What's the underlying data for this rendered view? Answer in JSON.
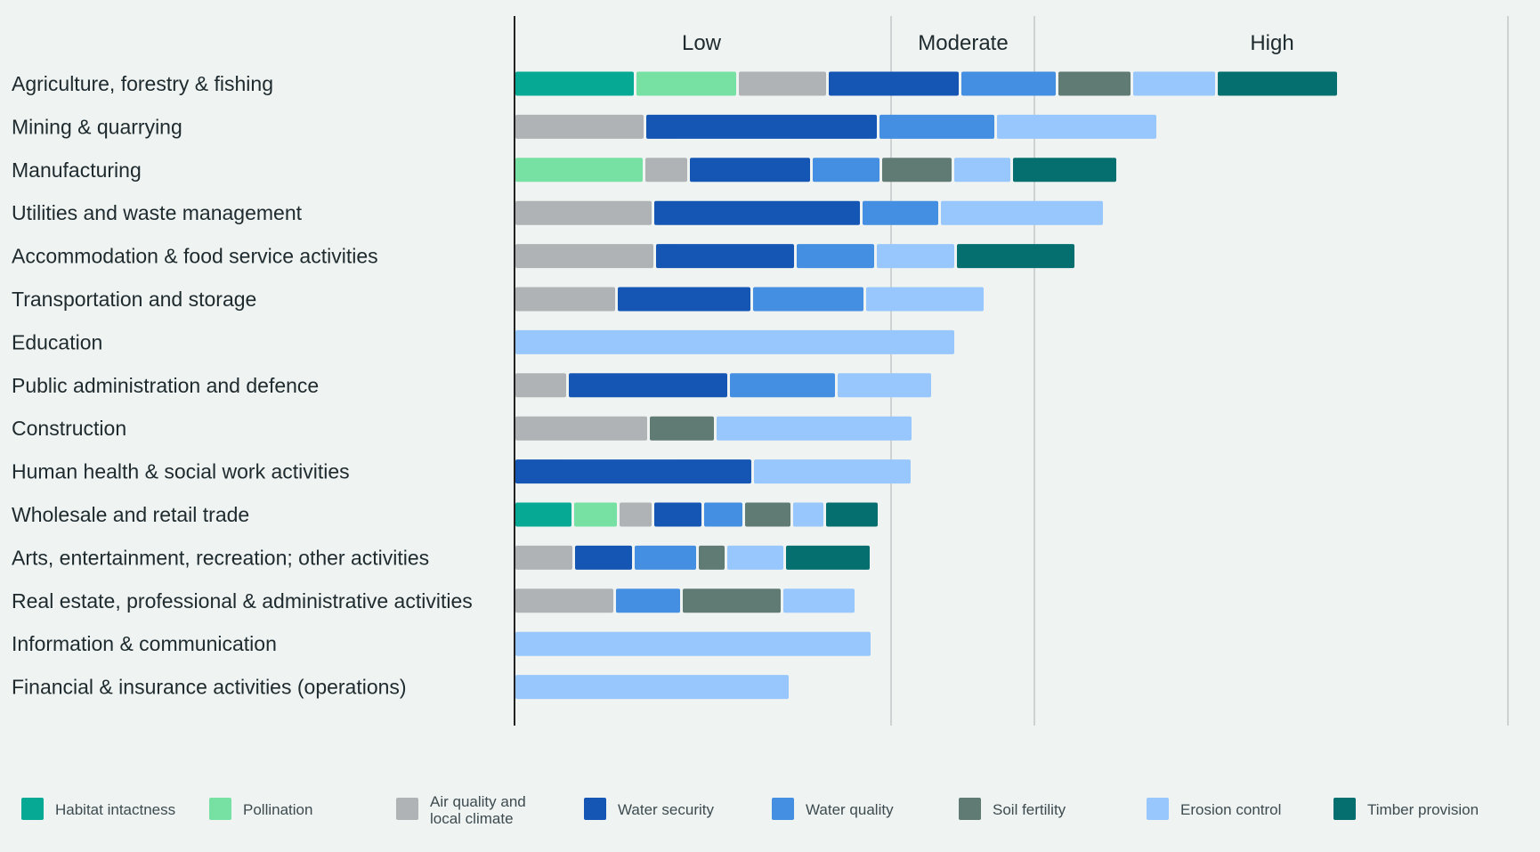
{
  "chart_data": {
    "type": "bar",
    "stacked": true,
    "orientation": "horizontal",
    "bands": [
      "Low",
      "Moderate",
      "High"
    ],
    "categories": [
      "Agriculture, forestry & fishing",
      "Mining & quarrying",
      "Manufacturing",
      "Utilities and waste management",
      "Accommodation & food service activities",
      "Transportation and storage",
      "Education",
      "Public administration and defence",
      "Construction",
      "Human health & social work activities",
      "Wholesale and retail trade",
      "Arts, entertainment, recreation; other activities",
      "Real estate, professional & administrative activities",
      "Information & communication",
      "Financial & insurance activities (operations)"
    ],
    "series": [
      {
        "name": "Habitat intactness",
        "color": "#06a994",
        "values": [
          133,
          0,
          0,
          0,
          0,
          0,
          0,
          0,
          0,
          0,
          63,
          0,
          0,
          0,
          0
        ]
      },
      {
        "name": "Pollination",
        "color": "#77e0a3",
        "values": [
          112,
          0,
          143,
          0,
          0,
          0,
          0,
          0,
          0,
          0,
          48,
          0,
          0,
          0,
          0
        ]
      },
      {
        "name": "Air quality and local climate",
        "color": "#b0b3b5",
        "values": [
          98,
          144,
          47,
          153,
          155,
          112,
          0,
          57,
          148,
          0,
          36,
          64,
          110,
          0,
          0
        ]
      },
      {
        "name": "Water security",
        "color": "#1556b5",
        "values": [
          146,
          259,
          135,
          231,
          155,
          149,
          0,
          178,
          0,
          265,
          53,
          64,
          0,
          0,
          0
        ]
      },
      {
        "name": "Water quality",
        "color": "#448fe1",
        "values": [
          106,
          129,
          75,
          85,
          87,
          124,
          0,
          118,
          0,
          0,
          43,
          69,
          72,
          0,
          0
        ]
      },
      {
        "name": "Soil fertility",
        "color": "#607b74",
        "values": [
          81,
          0,
          78,
          0,
          0,
          0,
          0,
          0,
          72,
          0,
          51,
          29,
          110,
          0,
          0
        ]
      },
      {
        "name": "Erosion control",
        "color": "#97c7fd",
        "values": [
          92,
          179,
          63,
          182,
          87,
          132,
          493,
          105,
          219,
          176,
          34,
          63,
          80,
          399,
          307
        ]
      },
      {
        "name": "Timber provision",
        "color": "#056f70",
        "values": [
          134,
          0,
          116,
          0,
          132,
          0,
          0,
          0,
          0,
          0,
          58,
          94,
          0,
          0,
          0
        ]
      }
    ],
    "legend_lines": [
      [
        "Habitat intactness"
      ],
      [
        "Pollination"
      ],
      [
        "Air quality and",
        "local climate"
      ],
      [
        "Water security"
      ],
      [
        "Water quality"
      ],
      [
        "Soil fertility"
      ],
      [
        "Erosion control"
      ],
      [
        "Timber provision"
      ]
    ],
    "legend_position": "bottom",
    "grid": true
  }
}
